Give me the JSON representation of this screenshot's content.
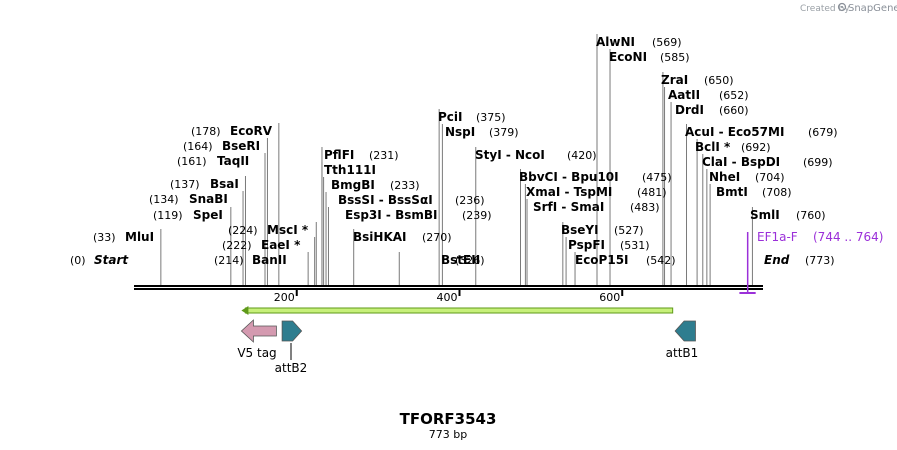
{
  "credit": {
    "created_by": "Created by",
    "brand": "SnapGene"
  },
  "map": {
    "title": "TFORF3543",
    "length_label": "773 bp",
    "length": 773,
    "start_label": "Start",
    "start_pos": "(0)",
    "end_label": "End",
    "end_pos": "(773)",
    "ticks": [
      "200",
      "400",
      "600"
    ],
    "tick_values": [
      200,
      400,
      600
    ]
  },
  "sites": [
    {
      "name": "MluI",
      "pos_label": "(33)",
      "pos": 33
    },
    {
      "name": "SpeI",
      "pos_label": "(119)",
      "pos": 119
    },
    {
      "name": "SnaBI",
      "pos_label": "(134)",
      "pos": 134
    },
    {
      "name": "BsaI",
      "pos_label": "(137)",
      "pos": 137
    },
    {
      "name": "TaqII",
      "pos_label": "(161)",
      "pos": 161
    },
    {
      "name": "BseRI",
      "pos_label": "(164)",
      "pos": 164
    },
    {
      "name": "EcoRV",
      "pos_label": "(178)",
      "pos": 178
    },
    {
      "name": "BanII",
      "pos_label": "(214)",
      "pos": 214
    },
    {
      "name": "EaeI *",
      "pos_label": "(222)",
      "pos": 222
    },
    {
      "name": "MscI *",
      "pos_label": "(224)",
      "pos": 224
    },
    {
      "name": "PflFI",
      "pos_label": "(231)",
      "pos": 231
    },
    {
      "name": "Tth111I",
      "pos_label": "",
      "pos": 231
    },
    {
      "name": "BmgBI",
      "pos_label": "(233)",
      "pos": 233
    },
    {
      "name": "BssSI - BssSαI",
      "pos_label": "(236)",
      "pos": 236
    },
    {
      "name": "Esp3I - BsmBI",
      "pos_label": "(239)",
      "pos": 239
    },
    {
      "name": "BsiHKAI",
      "pos_label": "(270)",
      "pos": 270
    },
    {
      "name": "BstEII",
      "pos_label": "(326)",
      "pos": 326
    },
    {
      "name": "PciI",
      "pos_label": "(375)",
      "pos": 375
    },
    {
      "name": "NspI",
      "pos_label": "(379)",
      "pos": 379
    },
    {
      "name": "StyI - NcoI",
      "pos_label": "(420)",
      "pos": 420
    },
    {
      "name": "BbvCI - Bpu10I",
      "pos_label": "(475)",
      "pos": 475
    },
    {
      "name": "XmaI - TspMI",
      "pos_label": "(481)",
      "pos": 481
    },
    {
      "name": "SrfI - SmaI",
      "pos_label": "(483)",
      "pos": 483
    },
    {
      "name": "BseYI",
      "pos_label": "(527)",
      "pos": 527
    },
    {
      "name": "PspFI",
      "pos_label": "(531)",
      "pos": 531
    },
    {
      "name": "EcoP15I",
      "pos_label": "(542)",
      "pos": 542
    },
    {
      "name": "AlwNI",
      "pos_label": "(569)",
      "pos": 569
    },
    {
      "name": "EcoNI",
      "pos_label": "(585)",
      "pos": 585
    },
    {
      "name": "ZraI",
      "pos_label": "(650)",
      "pos": 650
    },
    {
      "name": "AatII",
      "pos_label": "(652)",
      "pos": 652
    },
    {
      "name": "DrdI",
      "pos_label": "(660)",
      "pos": 660
    },
    {
      "name": "AcuI - Eco57MI",
      "pos_label": "(679)",
      "pos": 679
    },
    {
      "name": "BclI *",
      "pos_label": "(692)",
      "pos": 692
    },
    {
      "name": "ClaI - BspDI",
      "pos_label": "(699)",
      "pos": 699
    },
    {
      "name": "NheI",
      "pos_label": "(704)",
      "pos": 704
    },
    {
      "name": "BmtI",
      "pos_label": "(708)",
      "pos": 708
    },
    {
      "name": "SmlI",
      "pos_label": "(760)",
      "pos": 760
    }
  ],
  "primer": {
    "name": "EF1a-F",
    "range_label": "(744 .. 764)",
    "start": 744,
    "end": 764,
    "color": "#9b30d9"
  },
  "orf": {
    "start": 132,
    "end": 662,
    "direction": "reverse",
    "fill": "#c7f07a",
    "stroke": "#5f9a1a"
  },
  "features": [
    {
      "name": "V5 tag",
      "start": 132,
      "end": 175,
      "direction": "reverse",
      "color": "#d49ab0"
    },
    {
      "name": "attB2",
      "start": 182,
      "end": 206,
      "direction": "forward",
      "color": "#2e7d8f"
    },
    {
      "name": "attB1",
      "start": 665,
      "end": 690,
      "direction": "reverse",
      "color": "#2e7d8f"
    }
  ]
}
